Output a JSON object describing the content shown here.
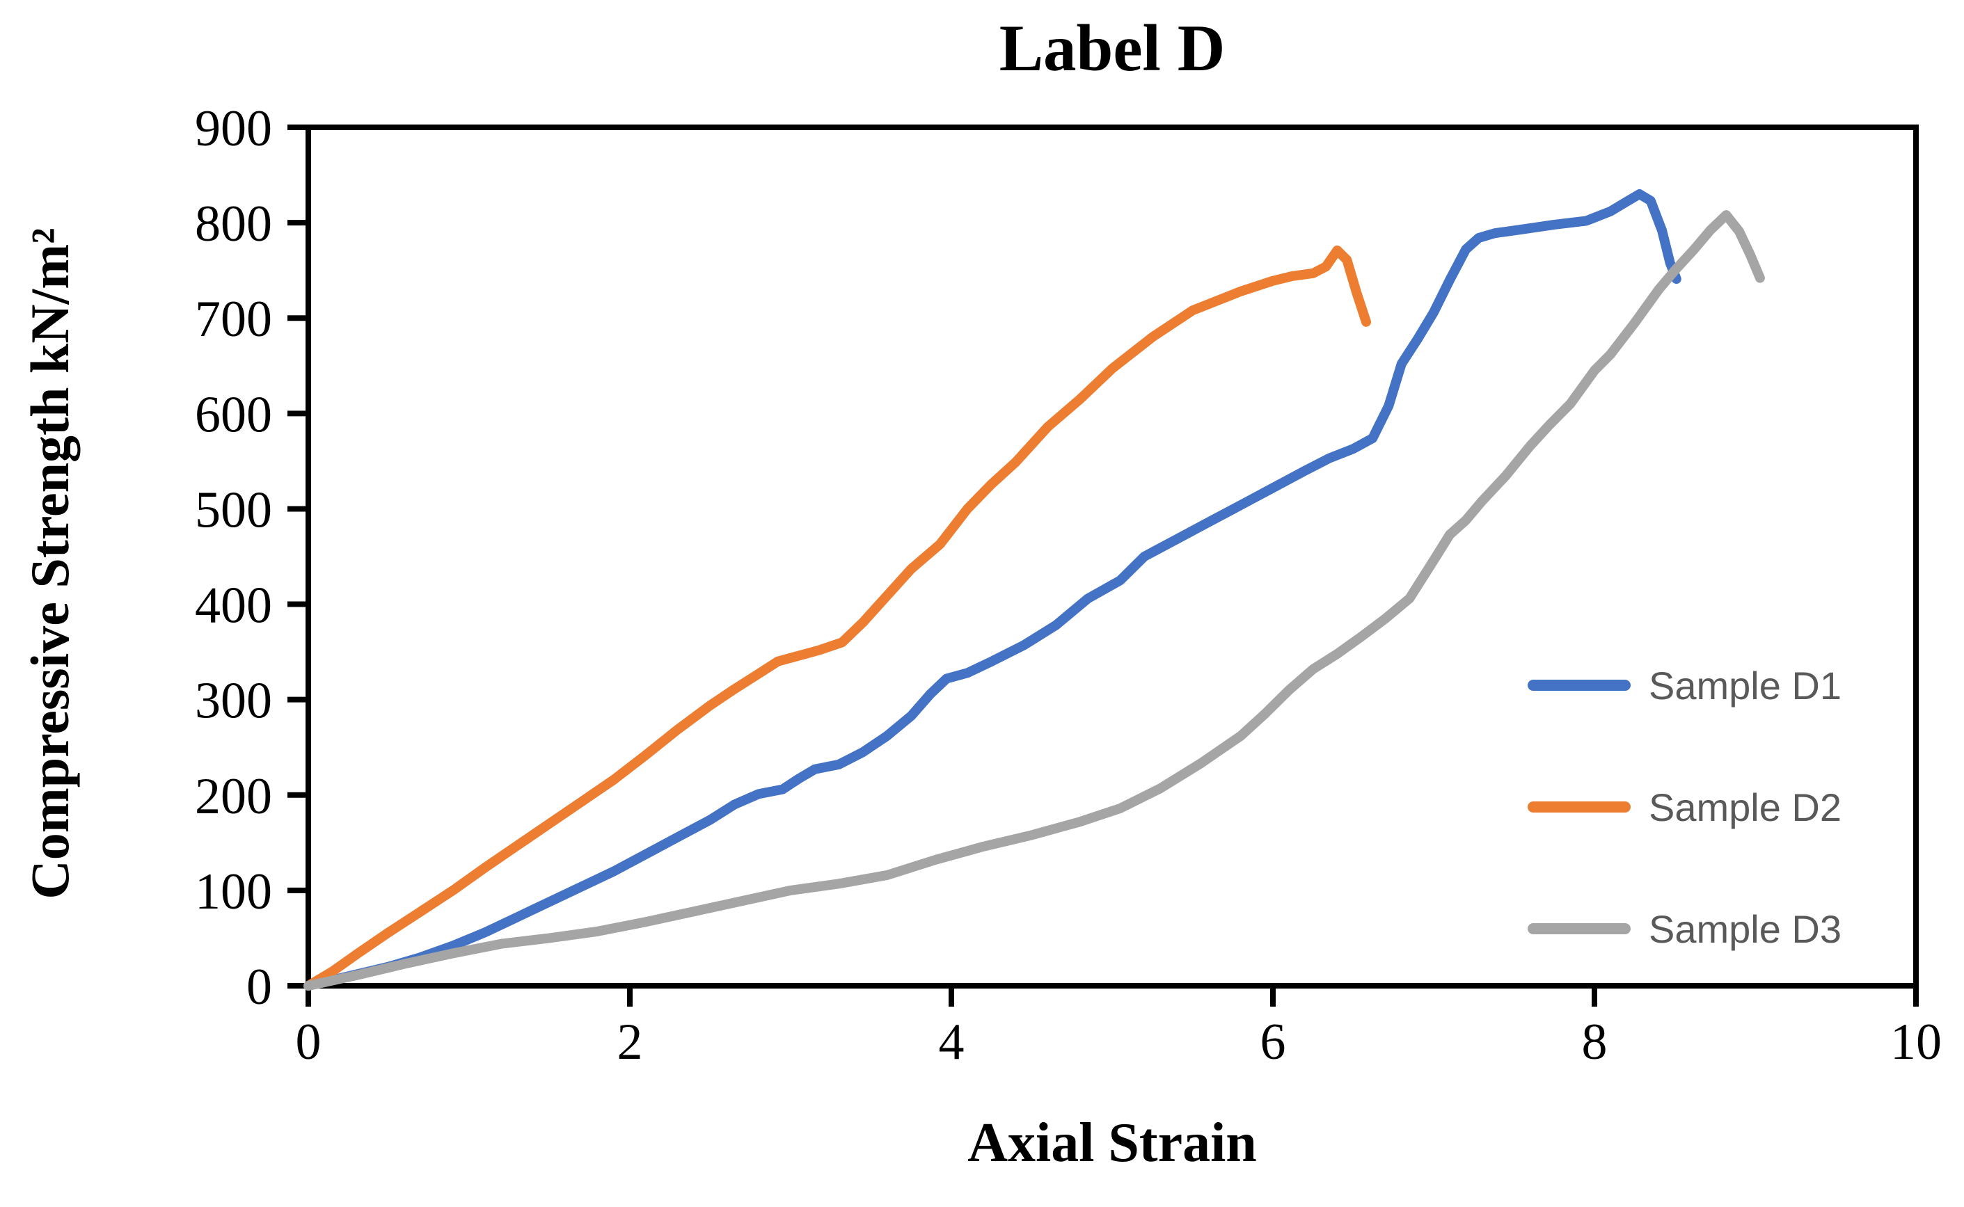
{
  "chart_data": {
    "type": "line",
    "title": "Label D",
    "xlabel": "Axial Strain",
    "ylabel": "Compressive Strength kN/m²",
    "xlim": [
      0,
      10
    ],
    "ylim": [
      0,
      900
    ],
    "x_ticks": [
      0,
      2,
      4,
      6,
      8,
      10
    ],
    "y_ticks": [
      0,
      100,
      200,
      300,
      400,
      500,
      600,
      700,
      800,
      900
    ],
    "grid": false,
    "plot_border": true,
    "axis_color": "#000000",
    "legend_position": "inside-right",
    "legend_text_color": "#595959",
    "series": [
      {
        "name": "Sample D1",
        "color": "#4472C4",
        "points": [
          [
            0,
            0
          ],
          [
            0.15,
            6
          ],
          [
            0.3,
            12
          ],
          [
            0.5,
            20
          ],
          [
            0.7,
            30
          ],
          [
            0.9,
            42
          ],
          [
            1.1,
            56
          ],
          [
            1.3,
            72
          ],
          [
            1.5,
            88
          ],
          [
            1.7,
            104
          ],
          [
            1.9,
            120
          ],
          [
            2.1,
            138
          ],
          [
            2.3,
            156
          ],
          [
            2.5,
            174
          ],
          [
            2.65,
            190
          ],
          [
            2.8,
            201
          ],
          [
            2.95,
            206
          ],
          [
            3.05,
            217
          ],
          [
            3.15,
            227
          ],
          [
            3.3,
            232
          ],
          [
            3.45,
            245
          ],
          [
            3.6,
            262
          ],
          [
            3.75,
            283
          ],
          [
            3.87,
            306
          ],
          [
            3.97,
            322
          ],
          [
            4.1,
            328
          ],
          [
            4.25,
            340
          ],
          [
            4.45,
            357
          ],
          [
            4.65,
            378
          ],
          [
            4.85,
            406
          ],
          [
            5.05,
            425
          ],
          [
            5.2,
            450
          ],
          [
            5.4,
            468
          ],
          [
            5.6,
            486
          ],
          [
            5.8,
            504
          ],
          [
            6.0,
            522
          ],
          [
            6.2,
            540
          ],
          [
            6.35,
            553
          ],
          [
            6.5,
            563
          ],
          [
            6.62,
            574
          ],
          [
            6.72,
            608
          ],
          [
            6.8,
            652
          ],
          [
            6.9,
            678
          ],
          [
            7.0,
            706
          ],
          [
            7.1,
            740
          ],
          [
            7.2,
            772
          ],
          [
            7.28,
            784
          ],
          [
            7.38,
            789
          ],
          [
            7.55,
            793
          ],
          [
            7.75,
            798
          ],
          [
            7.95,
            802
          ],
          [
            8.1,
            812
          ],
          [
            8.2,
            822
          ],
          [
            8.28,
            830
          ],
          [
            8.35,
            823
          ],
          [
            8.42,
            792
          ],
          [
            8.47,
            758
          ],
          [
            8.51,
            741
          ]
        ]
      },
      {
        "name": "Sample D2",
        "color": "#ED7D31",
        "points": [
          [
            0,
            0
          ],
          [
            0.15,
            15
          ],
          [
            0.3,
            33
          ],
          [
            0.5,
            56
          ],
          [
            0.7,
            78
          ],
          [
            0.9,
            100
          ],
          [
            1.1,
            124
          ],
          [
            1.3,
            147
          ],
          [
            1.5,
            170
          ],
          [
            1.7,
            193
          ],
          [
            1.9,
            216
          ],
          [
            2.1,
            242
          ],
          [
            2.3,
            269
          ],
          [
            2.5,
            294
          ],
          [
            2.65,
            311
          ],
          [
            2.8,
            327
          ],
          [
            2.92,
            340
          ],
          [
            3.05,
            346
          ],
          [
            3.18,
            352
          ],
          [
            3.32,
            360
          ],
          [
            3.45,
            381
          ],
          [
            3.6,
            409
          ],
          [
            3.75,
            437
          ],
          [
            3.93,
            463
          ],
          [
            4.1,
            500
          ],
          [
            4.25,
            526
          ],
          [
            4.4,
            549
          ],
          [
            4.6,
            586
          ],
          [
            4.8,
            615
          ],
          [
            5.0,
            647
          ],
          [
            5.25,
            680
          ],
          [
            5.5,
            708
          ],
          [
            5.65,
            718
          ],
          [
            5.8,
            728
          ],
          [
            6.0,
            739
          ],
          [
            6.12,
            744
          ],
          [
            6.25,
            747
          ],
          [
            6.33,
            754
          ],
          [
            6.4,
            771
          ],
          [
            6.46,
            761
          ],
          [
            6.52,
            727
          ],
          [
            6.58,
            696
          ]
        ]
      },
      {
        "name": "Sample D3",
        "color": "#A5A5A5",
        "points": [
          [
            0,
            0
          ],
          [
            0.3,
            11
          ],
          [
            0.6,
            23
          ],
          [
            0.9,
            34
          ],
          [
            1.2,
            44
          ],
          [
            1.5,
            50
          ],
          [
            1.8,
            57
          ],
          [
            2.1,
            67
          ],
          [
            2.4,
            78
          ],
          [
            2.7,
            89
          ],
          [
            3.0,
            100
          ],
          [
            3.3,
            107
          ],
          [
            3.6,
            116
          ],
          [
            3.9,
            132
          ],
          [
            4.2,
            146
          ],
          [
            4.5,
            158
          ],
          [
            4.8,
            172
          ],
          [
            5.05,
            186
          ],
          [
            5.3,
            207
          ],
          [
            5.55,
            233
          ],
          [
            5.8,
            262
          ],
          [
            5.95,
            285
          ],
          [
            6.1,
            310
          ],
          [
            6.25,
            332
          ],
          [
            6.4,
            348
          ],
          [
            6.55,
            366
          ],
          [
            6.7,
            385
          ],
          [
            6.85,
            406
          ],
          [
            7.0,
            446
          ],
          [
            7.1,
            473
          ],
          [
            7.2,
            488
          ],
          [
            7.3,
            508
          ],
          [
            7.45,
            535
          ],
          [
            7.6,
            566
          ],
          [
            7.72,
            588
          ],
          [
            7.85,
            610
          ],
          [
            8.0,
            645
          ],
          [
            8.1,
            662
          ],
          [
            8.25,
            695
          ],
          [
            8.4,
            730
          ],
          [
            8.5,
            750
          ],
          [
            8.62,
            772
          ],
          [
            8.72,
            792
          ],
          [
            8.82,
            808
          ],
          [
            8.9,
            791
          ],
          [
            8.97,
            766
          ],
          [
            9.03,
            742
          ]
        ]
      }
    ]
  }
}
